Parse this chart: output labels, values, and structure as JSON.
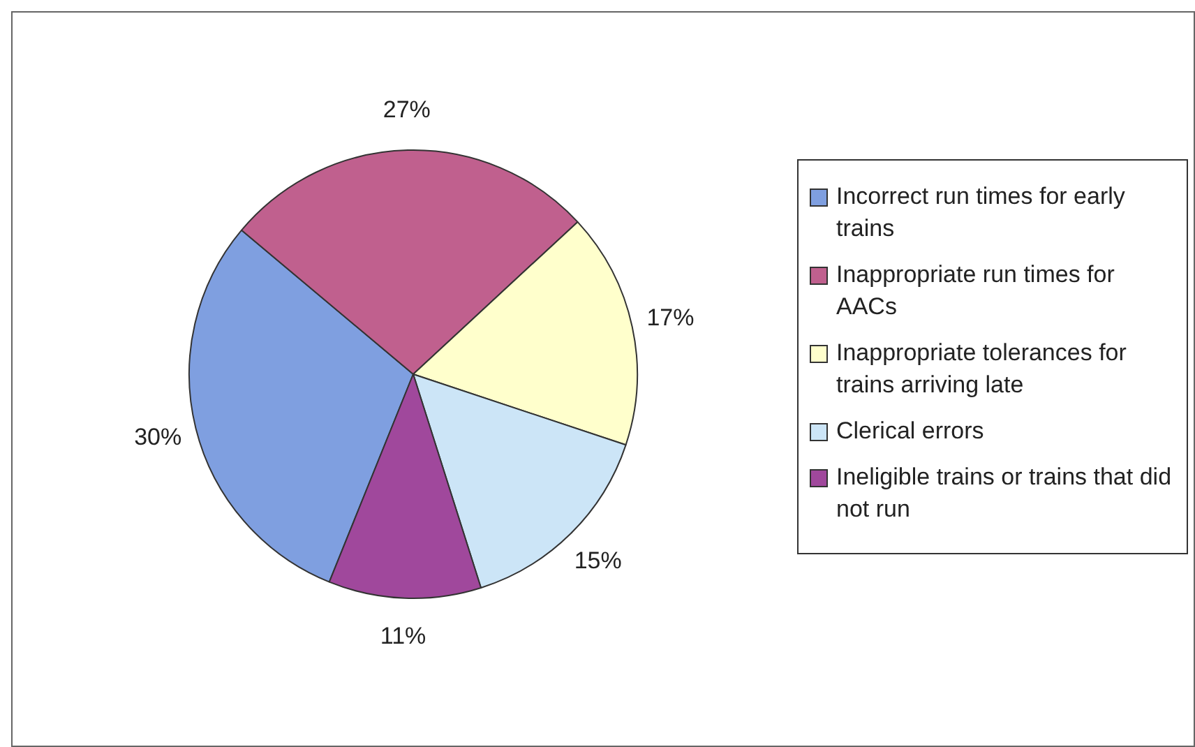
{
  "chart_data": {
    "type": "pie",
    "categories": [
      "Incorrect run times for early trains",
      "Inappropriate run times for AACs",
      "Inappropriate tolerances for trains arriving late",
      "Clerical errors",
      "Ineligible trains or trains that did not run"
    ],
    "values": [
      30,
      27,
      17,
      15,
      11
    ],
    "colors": [
      "#7f9fe0",
      "#c0608e",
      "#ffffcc",
      "#cce5f7",
      "#a0489c"
    ],
    "value_labels": [
      "30%",
      "27%",
      "17%",
      "15%",
      "11%"
    ],
    "legend": "right"
  }
}
